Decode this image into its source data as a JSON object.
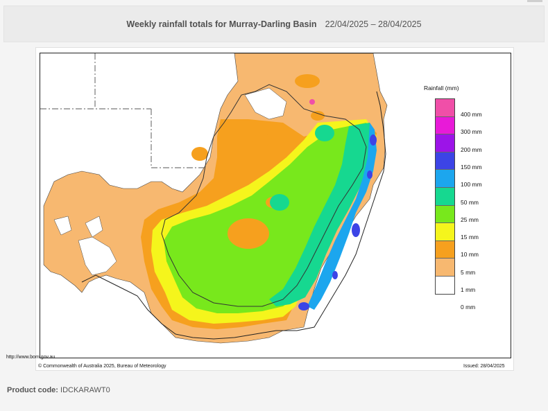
{
  "header": {
    "title": "Weekly rainfall totals for Murray-Darling Basin",
    "dates": "22/04/2025 – 28/04/2025"
  },
  "map": {
    "url_text": "http://www.bom.gov.au",
    "copyright": "© Commonwealth of Australia 2025, Bureau of Meteorology",
    "issued": "Issued: 28/04/2025"
  },
  "legend": {
    "title": "Rainfall (mm)",
    "items": [
      {
        "label": "400 mm",
        "color": "#f04fa8"
      },
      {
        "label": "300 mm",
        "color": "#e81ad8"
      },
      {
        "label": "200 mm",
        "color": "#9c14e8"
      },
      {
        "label": "150 mm",
        "color": "#3c44e6"
      },
      {
        "label": "100 mm",
        "color": "#1ca6ee"
      },
      {
        "label": "50 mm",
        "color": "#16d890"
      },
      {
        "label": "25 mm",
        "color": "#78e81c"
      },
      {
        "label": "15 mm",
        "color": "#f5f51c"
      },
      {
        "label": "10 mm",
        "color": "#f6a01e"
      },
      {
        "label": "5 mm",
        "color": "#f7b870"
      },
      {
        "label": "1 mm",
        "color": "#ffffff"
      },
      {
        "label": "0 mm",
        "color": ""
      }
    ]
  },
  "product": {
    "label": "Product code:",
    "code": "IDCKARAWT0"
  }
}
